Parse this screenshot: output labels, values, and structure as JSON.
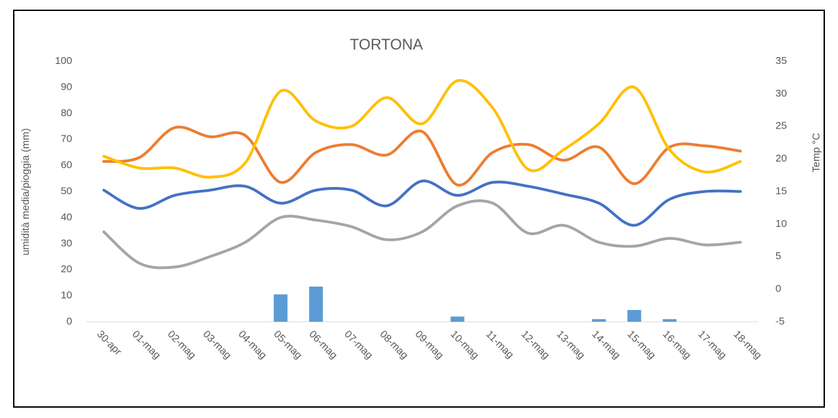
{
  "chart_data": {
    "type": "line",
    "title": "TORTONA",
    "y_label": "umidità media/pioggia (mm)",
    "y2_label": "Temp °C",
    "categories": [
      "30-apr",
      "01-mag",
      "02-mag",
      "03-mag",
      "04-mag",
      "05-mag",
      "06-mag",
      "07-mag",
      "08-mag",
      "09-mag",
      "10-mag",
      "11-mag",
      "12-mag",
      "13-mag",
      "14-mag",
      "15-mag",
      "16-mag",
      "17-mag",
      "18-mag"
    ],
    "series": [
      {
        "type": "bar",
        "color": "#5b9bd5",
        "values": [
          0,
          0,
          0,
          0,
          0,
          10.5,
          13.5,
          0,
          0,
          0,
          2,
          0,
          0,
          0,
          1,
          4.5,
          1,
          0,
          0
        ]
      },
      {
        "type": "line",
        "color": "#a5a5a5",
        "axis": "y2",
        "values": [
          8.8,
          4,
          3.4,
          5,
          7.2,
          11,
          10.6,
          9.6,
          7.6,
          8.8,
          12.8,
          13.2,
          8.6,
          9.8,
          7.2,
          6.6,
          7.8,
          6.8,
          7.2
        ]
      },
      {
        "type": "line",
        "color": "#4472c4",
        "axis": "y2",
        "values": [
          15.2,
          12.4,
          14.4,
          15.2,
          15.8,
          13.2,
          15.2,
          15.2,
          12.8,
          16.6,
          14.4,
          16.4,
          15.8,
          14.6,
          13.2,
          9.8,
          13.8,
          15,
          15
        ]
      },
      {
        "type": "line",
        "color": "#ed7d31",
        "values": [
          61.5,
          63,
          74.5,
          71,
          71.5,
          53.5,
          65,
          68,
          64,
          73,
          52.5,
          65,
          68,
          62,
          67,
          53,
          67,
          67.5,
          65.5
        ]
      },
      {
        "type": "line",
        "color": "#ffc000",
        "axis": "y2",
        "values": [
          20.4,
          18.6,
          18.6,
          17.2,
          19.4,
          30.4,
          25.8,
          25,
          29.4,
          25.4,
          32,
          27.8,
          18.4,
          21.4,
          25.4,
          31,
          21.4,
          18,
          19.6
        ]
      }
    ],
    "ylim": [
      0,
      100
    ],
    "yticks": [
      0,
      10,
      20,
      30,
      40,
      50,
      60,
      70,
      80,
      90,
      100
    ],
    "y2lim": [
      -5,
      35
    ],
    "y2ticks": [
      -5,
      0,
      5,
      10,
      15,
      20,
      25,
      30,
      35
    ]
  }
}
